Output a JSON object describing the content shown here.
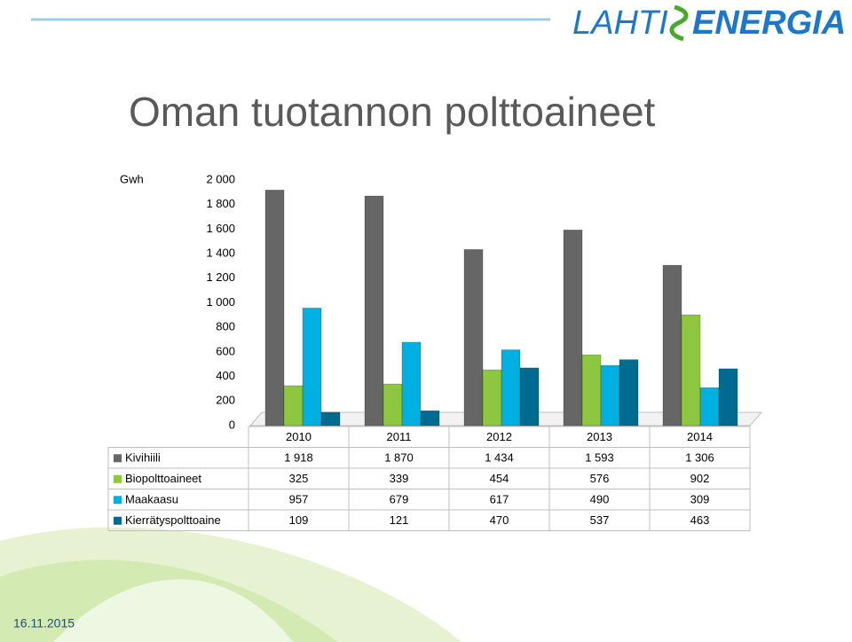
{
  "logo": {
    "left": "LAHTI",
    "right": "ENERGIA"
  },
  "footer": {
    "date": "16.11.2015"
  },
  "chart_data": {
    "type": "bar",
    "title": "Oman tuotannon polttoaineet",
    "ylabel": "Gwh",
    "categories": [
      "2010",
      "2011",
      "2012",
      "2013",
      "2014"
    ],
    "series": [
      {
        "name": "Kivihiili",
        "color": "#666666",
        "values": [
          1918,
          1870,
          1434,
          1593,
          1306
        ],
        "value_labels": [
          "1 918",
          "1 870",
          "1 434",
          "1 593",
          "1 306"
        ]
      },
      {
        "name": "Biopolttoaineet",
        "color": "#8dc63f",
        "values": [
          325,
          339,
          454,
          576,
          902
        ]
      },
      {
        "name": "Maakaasu",
        "color": "#00b0e0",
        "values": [
          957,
          679,
          617,
          490,
          309
        ]
      },
      {
        "name": "Kierrätyspolttoaine",
        "color": "#006b8f",
        "values": [
          109,
          121,
          470,
          537,
          463
        ]
      }
    ],
    "ylim": [
      0,
      2000
    ],
    "yticks": [
      0,
      200,
      400,
      600,
      800,
      {
        "value": 1000,
        "label": "1 000"
      },
      {
        "value": 1200,
        "label": "1 200"
      },
      {
        "value": 1400,
        "label": "1 400"
      },
      {
        "value": 1600,
        "label": "1 600"
      },
      {
        "value": 1800,
        "label": "1 800"
      },
      {
        "value": 2000,
        "label": "2 000"
      }
    ],
    "grid": false
  }
}
